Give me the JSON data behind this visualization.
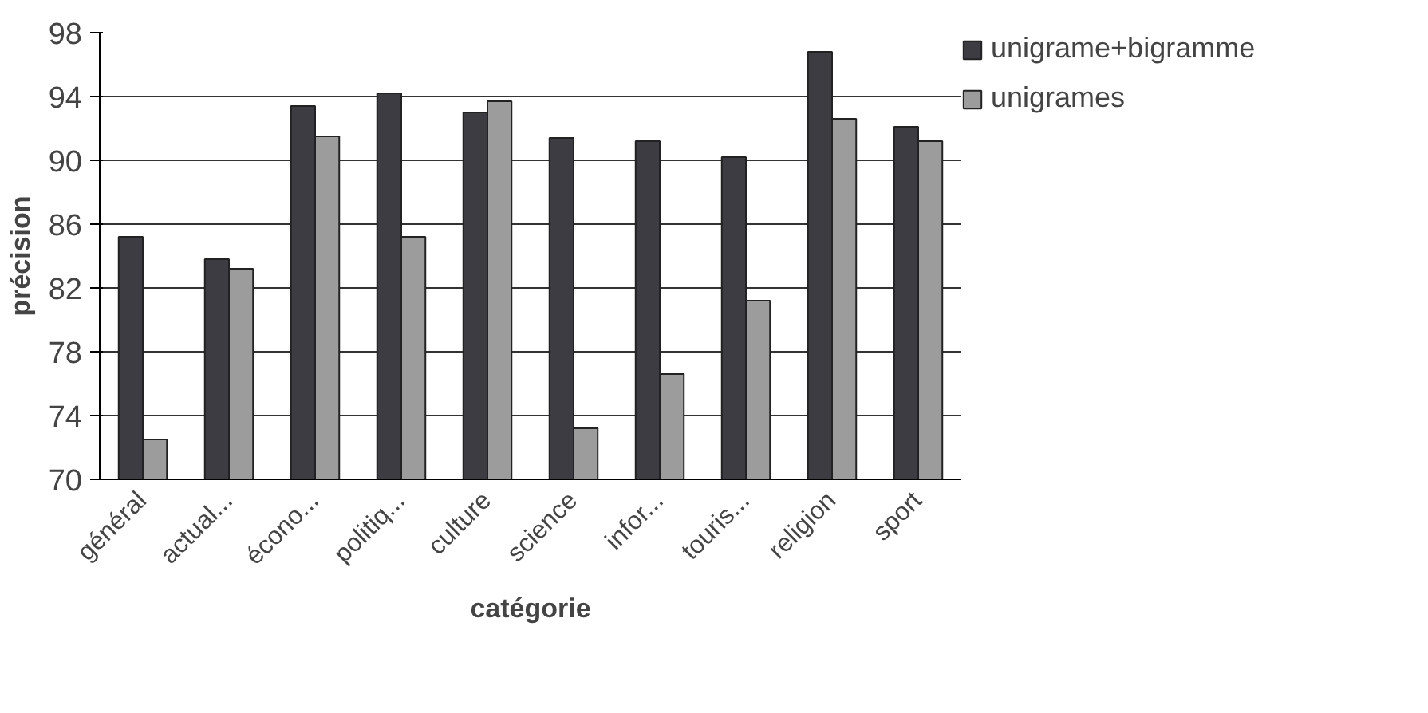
{
  "chart_data": {
    "type": "bar",
    "xlabel": "catégorie",
    "ylabel": "précision",
    "categories": [
      "général",
      "actual...",
      "écono...",
      "politiq...",
      "culture",
      "science",
      "infor...",
      "touris...",
      "religion",
      "sport"
    ],
    "series": [
      {
        "name": "unigrame+bigramme",
        "color": "#3c3c42",
        "values": [
          85.2,
          83.8,
          93.4,
          94.2,
          93.0,
          91.4,
          91.2,
          90.2,
          96.8,
          92.1
        ]
      },
      {
        "name": "unigrames",
        "color": "#9c9c9c",
        "values": [
          72.5,
          83.2,
          91.5,
          85.2,
          93.7,
          73.2,
          76.6,
          81.2,
          92.6,
          91.2
        ]
      }
    ],
    "ylim": [
      70,
      98
    ],
    "yticks": [
      70,
      74,
      78,
      82,
      86,
      90,
      94,
      98
    ],
    "grid": "y",
    "legend": "top right"
  }
}
